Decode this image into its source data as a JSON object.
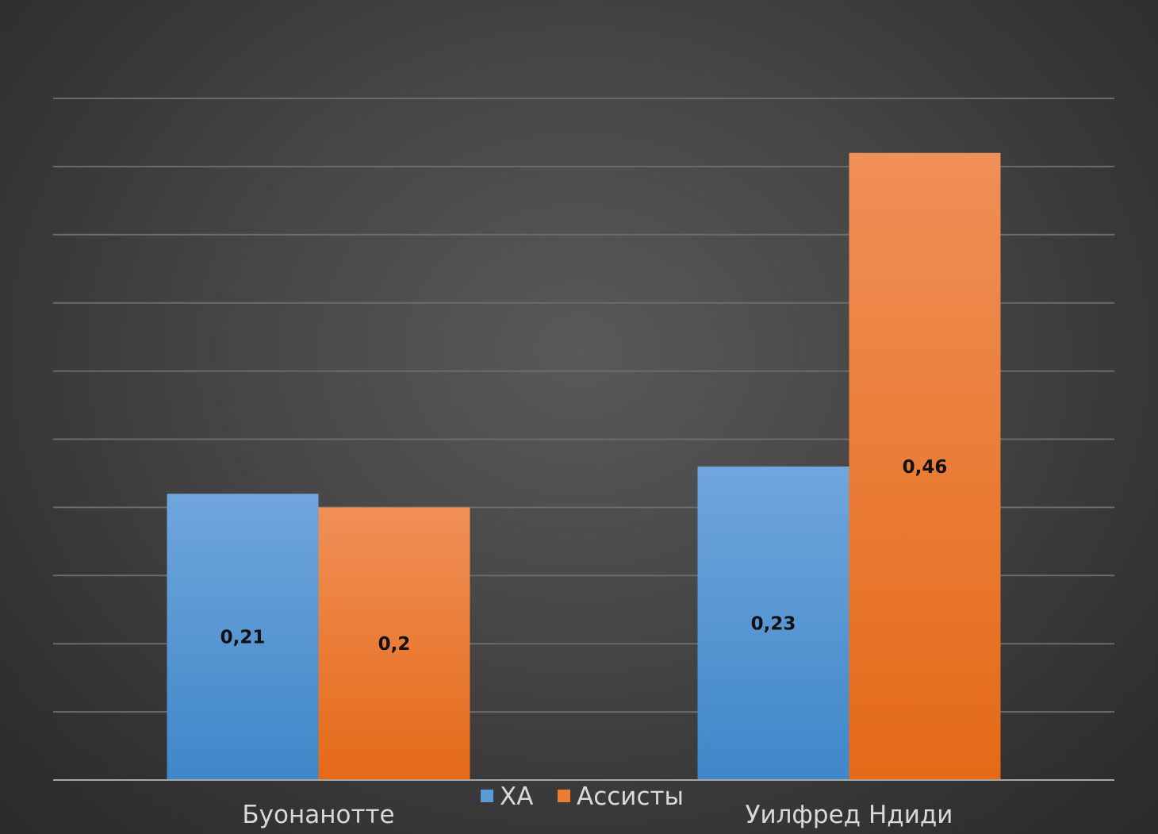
{
  "chart_data": {
    "type": "bar",
    "title": "",
    "xlabel": "",
    "ylabel": "",
    "categories": [
      "Буонанотте",
      "Уилфред Ндиди"
    ],
    "series": [
      {
        "name": "ХА",
        "values": [
          0.21,
          0.23
        ],
        "labels": [
          "0,21",
          "0,23"
        ],
        "color": "#5b9bd5"
      },
      {
        "name": "Ассисты",
        "values": [
          0.2,
          0.46
        ],
        "labels": [
          "0,2",
          "0,46"
        ],
        "color": "#ed7d31"
      }
    ],
    "ylim": [
      0,
      0.5
    ],
    "grid": true,
    "gridline_count": 10,
    "y_tick_labels_shown": false,
    "legend_position": "bottom"
  }
}
